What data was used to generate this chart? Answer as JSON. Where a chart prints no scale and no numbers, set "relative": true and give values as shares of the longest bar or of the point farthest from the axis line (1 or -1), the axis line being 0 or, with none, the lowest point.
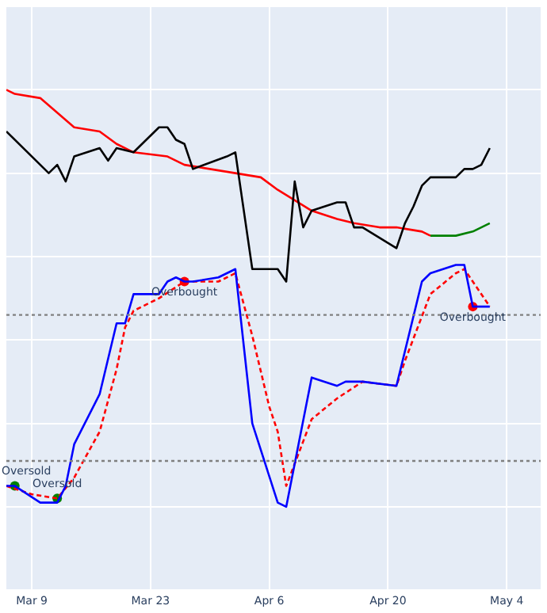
{
  "chart_data": {
    "type": "line",
    "relative": true,
    "grid": true,
    "legend": false,
    "marker": "none",
    "xlim": [
      "--03-06",
      "--05-08"
    ],
    "xticks": [
      {
        "value": "--03-09",
        "label": "Mar 9"
      },
      {
        "value": "--03-23",
        "label": "Mar 23"
      },
      {
        "value": "--04-06",
        "label": "Apr 6"
      },
      {
        "value": "--04-20",
        "label": "Apr 20"
      },
      {
        "value": "--05-04",
        "label": "May 4"
      }
    ],
    "series": [
      {
        "color": "#000000",
        "line_style": "solid",
        "x": [
          "--03-06",
          "--03-11",
          "--03-12",
          "--03-13",
          "--03-14",
          "--03-17",
          "--03-18",
          "--03-19",
          "--03-21",
          "--03-24",
          "--03-25",
          "--03-26",
          "--03-27",
          "--03-28",
          "--04-01",
          "--04-02",
          "--04-04",
          "--04-07",
          "--04-08",
          "--04-09",
          "--04-10",
          "--04-11",
          "--04-14",
          "--04-15",
          "--04-16",
          "--04-17",
          "--04-21",
          "--04-22",
          "--04-23",
          "--04-24",
          "--04-25",
          "--04-28",
          "--04-29",
          "--04-30",
          "--05-01",
          "--05-02"
        ],
        "values": [
          0.9,
          0.8,
          0.82,
          0.78,
          0.84,
          0.86,
          0.83,
          0.86,
          0.85,
          0.91,
          0.91,
          0.88,
          0.87,
          0.81,
          0.84,
          0.85,
          0.57,
          0.57,
          0.54,
          0.78,
          0.67,
          0.71,
          0.73,
          0.73,
          0.67,
          0.67,
          0.62,
          0.68,
          0.72,
          0.77,
          0.79,
          0.79,
          0.81,
          0.81,
          0.82,
          0.86
        ]
      },
      {
        "color": "#ff0000",
        "line_style": "solid",
        "x": [
          "--03-06",
          "--03-07",
          "--03-10",
          "--03-14",
          "--03-17",
          "--03-19",
          "--03-21",
          "--03-25",
          "--03-27",
          "--04-02",
          "--04-05",
          "--04-07",
          "--04-11",
          "--04-14",
          "--04-16",
          "--04-19",
          "--04-21",
          "--04-24",
          "--04-25"
        ],
        "values": [
          1.0,
          0.99,
          0.98,
          0.91,
          0.9,
          0.87,
          0.85,
          0.84,
          0.82,
          0.8,
          0.79,
          0.76,
          0.71,
          0.69,
          0.68,
          0.67,
          0.67,
          0.66,
          0.65
        ]
      },
      {
        "color": "#008000",
        "line_style": "solid",
        "x": [
          "--04-25",
          "--04-28",
          "--04-30",
          "--05-02"
        ],
        "values": [
          0.65,
          0.65,
          0.66,
          0.68
        ]
      },
      {
        "color": "#0000ff",
        "line_style": "solid",
        "x": [
          "--03-06",
          "--03-07",
          "--03-10",
          "--03-12",
          "--03-13",
          "--03-14",
          "--03-17",
          "--03-19",
          "--03-20",
          "--03-21",
          "--03-24",
          "--03-25",
          "--03-26",
          "--03-27",
          "--03-28",
          "--03-31",
          "--04-02",
          "--04-04",
          "--04-07",
          "--04-08",
          "--04-11",
          "--04-14",
          "--04-15",
          "--04-17",
          "--04-21",
          "--04-24",
          "--04-25",
          "--04-28",
          "--04-29",
          "--04-30",
          "--05-02"
        ],
        "values": [
          0.05,
          0.05,
          0.01,
          0.01,
          0.05,
          0.15,
          0.27,
          0.44,
          0.44,
          0.51,
          0.51,
          0.54,
          0.55,
          0.54,
          0.54,
          0.55,
          0.57,
          0.2,
          0.01,
          0,
          0.31,
          0.29,
          0.3,
          0.3,
          0.29,
          0.54,
          0.56,
          0.58,
          0.58,
          0.48,
          0.48
        ]
      },
      {
        "color": "#ff0000",
        "line_style": "dashed",
        "x": [
          "--03-06",
          "--03-09",
          "--03-12",
          "--03-14",
          "--03-17",
          "--03-19",
          "--03-20",
          "--03-21",
          "--03-24",
          "--03-27",
          "--03-31",
          "--04-02",
          "--04-04",
          "--04-06",
          "--04-07",
          "--04-08",
          "--04-11",
          "--04-14",
          "--04-17",
          "--04-21",
          "--04-22",
          "--04-25",
          "--04-28",
          "--04-29",
          "--05-02"
        ],
        "values": [
          0.05,
          0.03,
          0.02,
          0.07,
          0.18,
          0.33,
          0.43,
          0.47,
          0.5,
          0.54,
          0.54,
          0.56,
          0.41,
          0.24,
          0.18,
          0.05,
          0.21,
          0.26,
          0.3,
          0.29,
          0.35,
          0.51,
          0.56,
          0.57,
          0.48
        ]
      },
      {
        "type": "scatter",
        "marker": "circle",
        "color": "#ff0000",
        "x": [
          "--03-27",
          "--04-30"
        ],
        "values": [
          0.54,
          0.48
        ]
      },
      {
        "type": "scatter",
        "marker": "circle",
        "color": "#008000",
        "x": [
          "--03-07",
          "--03-12"
        ],
        "values": [
          0.05,
          0.02
        ]
      }
    ],
    "ref_lines": [
      {
        "axis": "y",
        "value": 0.46,
        "color": "#808080",
        "line_style": "dotted"
      },
      {
        "axis": "y",
        "value": 0.11,
        "color": "#808080",
        "line_style": "dotted"
      }
    ],
    "annotations": [
      {
        "text": "Overbought",
        "x": "--03-27",
        "y": 0.54
      },
      {
        "text": "Overbought",
        "x": "--04-30",
        "y": 0.48
      },
      {
        "text": "Oversold",
        "x": "--03-07",
        "y": 0.05
      },
      {
        "text": "Oversold",
        "x": "--03-12",
        "y": 0.02
      }
    ]
  }
}
